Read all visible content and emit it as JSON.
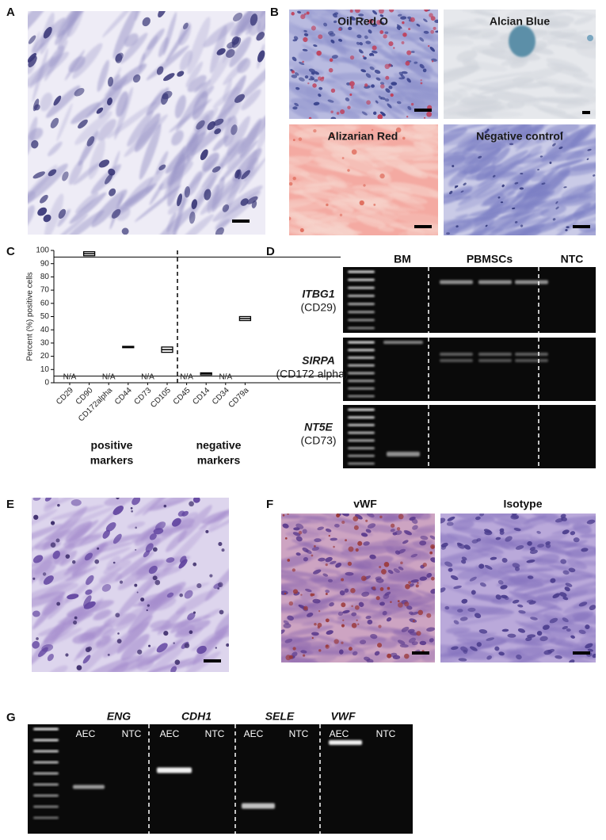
{
  "panel_labels": [
    "A",
    "B",
    "C",
    "D",
    "E",
    "F",
    "G"
  ],
  "panel_b": {
    "images": [
      "Oil Red O",
      "Alcian Blue",
      "Alizarian Red",
      "Negative control"
    ]
  },
  "chart_data": {
    "type": "floating-bar",
    "y_label": "Percent (%) positive cells",
    "categories": [
      "CD29",
      "CD90",
      "CD172alpha",
      "CD44",
      "CD73",
      "CD105",
      "CD45",
      "CD14",
      "CD34",
      "CD79a"
    ],
    "values": [
      null,
      97.5,
      null,
      27,
      null,
      25,
      null,
      7,
      null,
      48.5
    ],
    "low": [
      null,
      96,
      null,
      26.5,
      null,
      23,
      null,
      6,
      null,
      47
    ],
    "high": [
      null,
      99,
      null,
      27.5,
      null,
      27,
      null,
      7.5,
      null,
      50
    ],
    "na_label": "N/A",
    "reference_lines": [
      95,
      5
    ],
    "ylim": [
      0,
      100
    ],
    "yticks": [
      0,
      10,
      20,
      30,
      40,
      50,
      60,
      70,
      80,
      90,
      100
    ],
    "groups": [
      {
        "lines": [
          "positive",
          "markers"
        ]
      },
      {
        "lines": [
          "negative",
          "markers"
        ]
      }
    ]
  },
  "panel_d": {
    "lanes": [
      "BM",
      "PBMSCs",
      "NTC"
    ],
    "genes": [
      {
        "gene": "ITBG1",
        "protein": "(CD29)"
      },
      {
        "gene": "SIRPA",
        "protein": "(CD172 alpha)"
      },
      {
        "gene": "NT5E",
        "protein": "(CD73)"
      }
    ]
  },
  "panel_f": {
    "images": [
      "vWF",
      "Isotype"
    ]
  },
  "panel_g": {
    "genes": [
      "ENG",
      "CDH1",
      "SELE",
      "VWF"
    ],
    "lanes": [
      "AEC",
      "NTC"
    ]
  }
}
